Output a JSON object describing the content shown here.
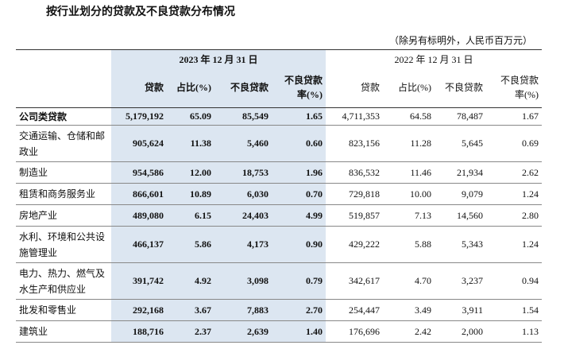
{
  "title": "按行业划分的贷款及不良贷款分布情况",
  "note": "（除另有标明外，人民币百万元）",
  "table": {
    "groups": [
      "2023 年 12 月 31 日",
      "2022 年 12 月 31 日"
    ],
    "columns": [
      "贷款",
      "占比(%)",
      "不良贷款",
      "不良贷款率(%)",
      "贷款",
      "占比(%)",
      "不良贷款",
      "不良贷款率(%)"
    ],
    "rows": [
      {
        "label": "公司类贷款",
        "values": [
          "5,179,192",
          "65.09",
          "85,549",
          "1.65",
          "4,711,353",
          "64.58",
          "78,487",
          "1.67"
        ]
      },
      {
        "label": "交通运输、仓储和邮政业",
        "values": [
          "905,624",
          "11.38",
          "5,460",
          "0.60",
          "823,156",
          "11.28",
          "5,645",
          "0.69"
        ]
      },
      {
        "label": "制造业",
        "values": [
          "954,586",
          "12.00",
          "18,753",
          "1.96",
          "836,532",
          "11.46",
          "21,934",
          "2.62"
        ]
      },
      {
        "label": "租赁和商务服务业",
        "values": [
          "866,601",
          "10.89",
          "6,030",
          "0.70",
          "729,818",
          "10.00",
          "9,079",
          "1.24"
        ]
      },
      {
        "label": "房地产业",
        "values": [
          "489,080",
          "6.15",
          "24,403",
          "4.99",
          "519,857",
          "7.13",
          "14,560",
          "2.80"
        ]
      },
      {
        "label": "水利、环境和公共设施管理业",
        "values": [
          "466,137",
          "5.86",
          "4,173",
          "0.90",
          "429,222",
          "5.88",
          "5,343",
          "1.24"
        ]
      },
      {
        "label": "电力、热力、燃气及水生产和供应业",
        "values": [
          "391,742",
          "4.92",
          "3,098",
          "0.79",
          "342,617",
          "4.70",
          "3,237",
          "0.94"
        ]
      },
      {
        "label": "批发和零售业",
        "values": [
          "292,168",
          "3.67",
          "7,883",
          "2.70",
          "254,447",
          "3.49",
          "3,911",
          "1.54"
        ]
      },
      {
        "label": "建筑业",
        "values": [
          "188,716",
          "2.37",
          "2,639",
          "1.40",
          "176,696",
          "2.42",
          "2,000",
          "1.13"
        ]
      }
    ]
  }
}
